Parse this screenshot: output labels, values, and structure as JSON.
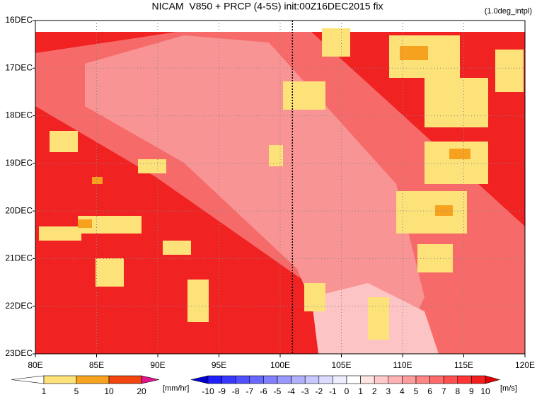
{
  "chart_data": {
    "type": "hovmoller",
    "title": "NICAM  V850 + PRCP (4-5S) init:00Z16DEC2015 fix",
    "subtitle": "(1.0deg_intpl)",
    "xlim": [
      80,
      120
    ],
    "xticks": [
      {
        "value": 80,
        "label": "80E"
      },
      {
        "value": 85,
        "label": "85E"
      },
      {
        "value": 90,
        "label": "90E"
      },
      {
        "value": 95,
        "label": "95E"
      },
      {
        "value": 100,
        "label": "100E"
      },
      {
        "value": 105,
        "label": "105E"
      },
      {
        "value": 110,
        "label": "110E"
      },
      {
        "value": 115,
        "label": "115E"
      },
      {
        "value": 120,
        "label": "120E"
      }
    ],
    "categories": [
      "16DEC",
      "17DEC",
      "18DEC",
      "19DEC",
      "20DEC",
      "21DEC",
      "22DEC",
      "23DEC"
    ],
    "grid": true,
    "reference_line_x": 101,
    "precip_colorbar": {
      "levels": [
        1,
        5,
        10,
        20
      ],
      "unit": "[mm/hr]",
      "colors": [
        "#ffffff",
        "#fde27a",
        "#f7a21f",
        "#f2450f",
        "#e0148c"
      ]
    },
    "wind_colorbar": {
      "levels": [
        -10,
        -9,
        -8,
        -7,
        -6,
        -5,
        -4,
        -3,
        -2,
        -1,
        0,
        1,
        2,
        3,
        4,
        5,
        6,
        7,
        8,
        9,
        10
      ],
      "unit": "[m/s]",
      "colors": [
        "#0000d2",
        "#2020ff",
        "#3838ff",
        "#5050ff",
        "#6868ff",
        "#8080ff",
        "#9898ff",
        "#b0b0ff",
        "#c8c8ff",
        "#dcdcff",
        "#eeeeff",
        "#ffffff",
        "#ffe4e4",
        "#ffcaca",
        "#ffb2b2",
        "#ff9c9c",
        "#ff8484",
        "#ff6a6a",
        "#ff5050",
        "#ff3434",
        "#f51e1e",
        "#e00000"
      ]
    }
  }
}
